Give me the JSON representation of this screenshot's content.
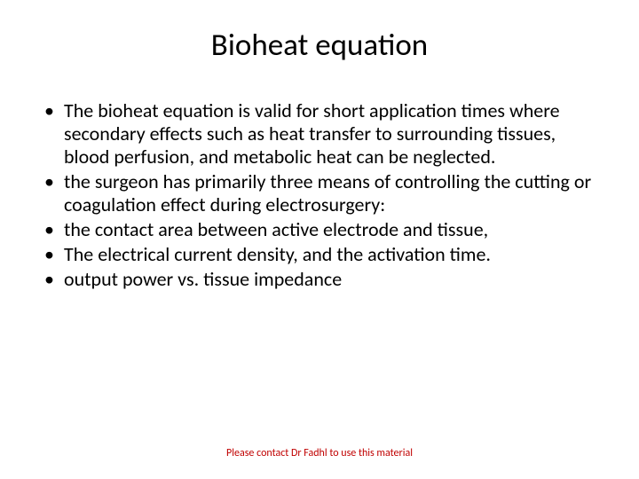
{
  "title": "Bioheat equation",
  "bullets": [
    "The bioheat equation is valid for short application times where secondary effects such as heat transfer to surrounding tissues, blood perfusion, and metabolic heat can be neglected.",
    "the surgeon has primarily three means of controlling the cutting or coagulation effect during electrosurgery:",
    "the contact area between active electrode and tissue,",
    "The electrical current density, and the activation time.",
    "output power vs. tissue impedance"
  ],
  "footer": "Please contact Dr Fadhl to use this material",
  "colors": {
    "background": "#ffffff",
    "text": "#000000",
    "footer_text": "#c00000"
  },
  "typography": {
    "title_fontsize": 35,
    "title_weight": 400,
    "body_fontsize": 22,
    "footer_fontsize": 12,
    "font_family": "Calibri"
  }
}
